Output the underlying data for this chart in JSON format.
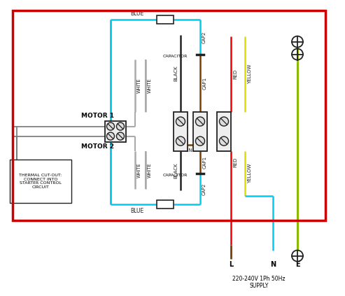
{
  "background": "#ffffff",
  "outer_border_color": "#cc0000",
  "border": [
    8,
    5,
    455,
    305
  ],
  "wire_colors": {
    "blue": "#00ccee",
    "black": "#222222",
    "brown": "#7B3F00",
    "red": "#ee0000",
    "yellow": "#dddd00",
    "green_yellow": "#88bb00",
    "cyan": "#00ccee",
    "gray": "#777777",
    "white_wire": "#aaaaaa"
  },
  "labels": {
    "blue_top": "BLUE",
    "blue_bot": "BLUE",
    "cap2_top": "CAP2",
    "cap2_bot": "CAP2",
    "cap1_top": "CAP1",
    "cap1_bot": "CAP1",
    "capacitor_top": "CAPACITOR",
    "capacitor_bot": "CAPACITOR",
    "link": "LINK",
    "motor1": "MOTOR 1",
    "motor2": "MOTOR 2",
    "white": "WHITE",
    "black_lbl": "BLACK",
    "red_lbl": "RED",
    "yellow_lbl": "YELLOW",
    "L": "L",
    "N": "N",
    "E": "E",
    "supply": "220-240V 1Ph 50Hz\nSUPPLY",
    "thermal": "THERMAL CUT-OUT:\nCONNECT INTO\nSTARTER CONTROL\nCIRCUIT"
  }
}
